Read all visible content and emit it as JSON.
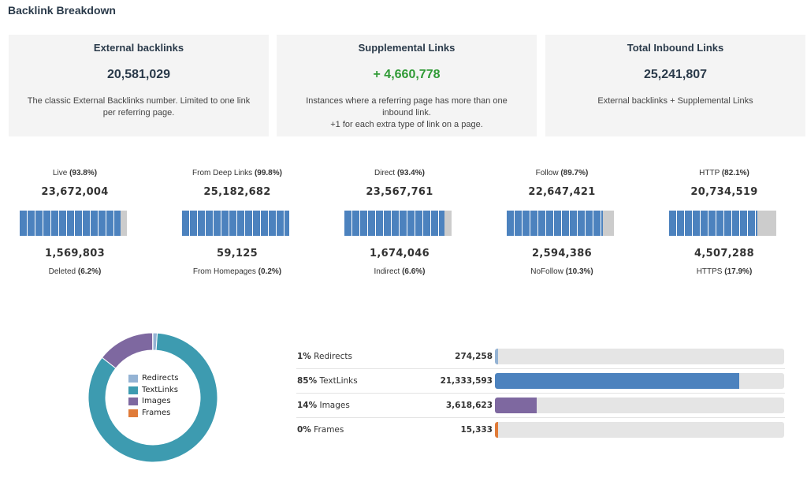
{
  "page": {
    "title": "Backlink Breakdown"
  },
  "cards": [
    {
      "title": "External backlinks",
      "value": "20,581,029",
      "value_style": "normal",
      "description": "The classic External Backlinks number. Limited to one link\nper referring page."
    },
    {
      "title": "Supplemental Links",
      "value": "+ 4,660,778",
      "value_style": "green",
      "description": "Instances where a referring page has more than one\ninbound link.\n+1 for each extra type of link on a page."
    },
    {
      "title": "Total Inbound Links",
      "value": "25,241,807",
      "value_style": "normal",
      "description": "External backlinks + Supplemental Links"
    }
  ],
  "metrics": [
    {
      "top_label": "Live",
      "top_pct": "(93.8%)",
      "top_value": "23,672,004",
      "fill_fraction": 0.938,
      "bottom_value": "1,569,803",
      "bottom_label": "Deleted",
      "bottom_pct": "(6.2%)"
    },
    {
      "top_label": "From Deep Links",
      "top_pct": "(99.8%)",
      "top_value": "25,182,682",
      "fill_fraction": 0.998,
      "bottom_value": "59,125",
      "bottom_label": "From Homepages",
      "bottom_pct": "(0.2%)"
    },
    {
      "top_label": "Direct",
      "top_pct": "(93.4%)",
      "top_value": "23,567,761",
      "fill_fraction": 0.934,
      "bottom_value": "1,674,046",
      "bottom_label": "Indirect",
      "bottom_pct": "(6.6%)"
    },
    {
      "top_label": "Follow",
      "top_pct": "(89.7%)",
      "top_value": "22,647,421",
      "fill_fraction": 0.897,
      "bottom_value": "2,594,386",
      "bottom_label": "NoFollow",
      "bottom_pct": "(10.3%)"
    },
    {
      "top_label": "HTTP",
      "top_pct": "(82.1%)",
      "top_value": "20,734,519",
      "fill_fraction": 0.821,
      "bottom_value": "4,507,288",
      "bottom_label": "HTTPS",
      "bottom_pct": "(17.9%)"
    }
  ],
  "colors": {
    "redirects": "#94b3d4",
    "textlinks": "#3d9bb0",
    "images": "#7e68a0",
    "frames": "#e07b39",
    "bar_fill": "#4c82be",
    "bar_track": "#cccccc",
    "green": "#2f9a35"
  },
  "chart_data": {
    "type": "pie",
    "donut": true,
    "categories": [
      "Redirects",
      "TextLinks",
      "Images",
      "Frames"
    ],
    "values": [
      274258,
      21333593,
      3618623,
      15333
    ],
    "legend_position": "center"
  },
  "legend": [
    {
      "label": "Redirects",
      "color_key": "redirects"
    },
    {
      "label": "TextLinks",
      "color_key": "textlinks"
    },
    {
      "label": "Images",
      "color_key": "images"
    },
    {
      "label": "Frames",
      "color_key": "frames"
    }
  ],
  "breakdown": [
    {
      "pct": "1%",
      "label": "Redirects",
      "value": "274,258",
      "count": 274258,
      "color_key": "redirects"
    },
    {
      "pct": "85%",
      "label": "TextLinks",
      "value": "21,333,593",
      "count": 21333593,
      "color_key": "textlinks_bar"
    },
    {
      "pct": "14%",
      "label": "Images",
      "value": "3,618,623",
      "count": 3618623,
      "color_key": "images"
    },
    {
      "pct": "0%",
      "label": "Frames",
      "value": "15,333",
      "count": 15333,
      "color_key": "frames"
    }
  ],
  "breakdown_total": 25241807
}
